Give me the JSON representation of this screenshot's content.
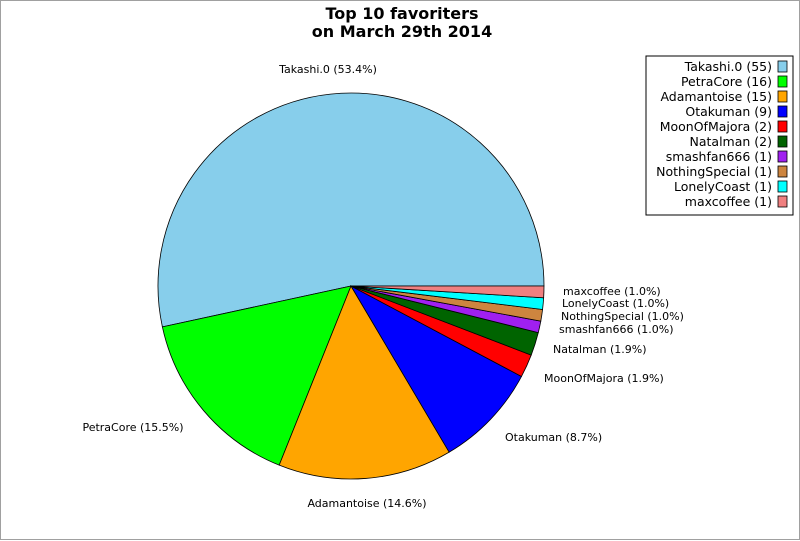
{
  "chart_data": {
    "type": "pie",
    "title": "Top 10 favoriters",
    "subtitle": "on March 29th 2014",
    "legend_position": "top-right",
    "slices": [
      {
        "label": "Takashi.0",
        "value": 55,
        "percent": "53.4%",
        "color": "#87ceeb"
      },
      {
        "label": "PetraCore",
        "value": 16,
        "percent": "15.5%",
        "color": "#00ff00"
      },
      {
        "label": "Adamantoise",
        "value": 15,
        "percent": "14.6%",
        "color": "#ffa500"
      },
      {
        "label": "Otakuman",
        "value": 9,
        "percent": "8.7%",
        "color": "#0000ff"
      },
      {
        "label": "MoonOfMajora",
        "value": 2,
        "percent": "1.9%",
        "color": "#ff0000"
      },
      {
        "label": "Natalman",
        "value": 2,
        "percent": "1.9%",
        "color": "#006400"
      },
      {
        "label": "smashfan666",
        "value": 1,
        "percent": "1.0%",
        "color": "#a020f0"
      },
      {
        "label": "NothingSpecial",
        "value": 1,
        "percent": "1.0%",
        "color": "#cd853f"
      },
      {
        "label": "LonelyCoast",
        "value": 1,
        "percent": "1.0%",
        "color": "#00ffff"
      },
      {
        "label": "maxcoffee",
        "value": 1,
        "percent": "1.0%",
        "color": "#f08080"
      }
    ]
  }
}
